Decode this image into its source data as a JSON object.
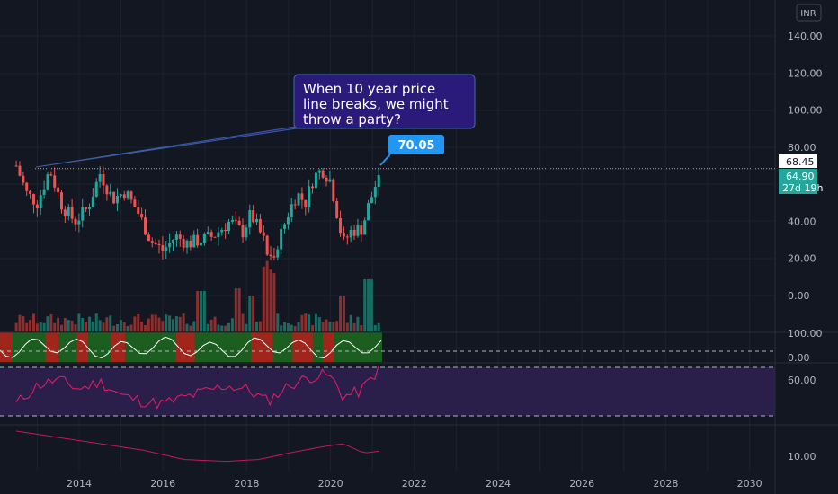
{
  "currency_button": "INR",
  "colors": {
    "background": "#131722",
    "up": "#26a69a",
    "down": "#ef5350",
    "grid": "#1e222d",
    "text": "#b2b5be",
    "callout_bg": "#2a1b7a",
    "price_bubble": "#2196f3",
    "rsi_line": "#e91e63",
    "lower_line": "#c2185b",
    "osc_line": "#ffffff"
  },
  "chart_data": {
    "type": "candlestick",
    "x_axis_years": [
      "2014",
      "2016",
      "2018",
      "2020",
      "2022",
      "2024",
      "2026",
      "2028",
      "2030"
    ],
    "price_axis_ticks": [
      "140.00",
      "120.00",
      "100.00",
      "80.00",
      "40.00",
      "20.00",
      "0.00"
    ],
    "annotation": "When 10 year price line breaks, we might throw a party?",
    "annotation_lines": [
      "When 10 year price",
      "line breaks, we might",
      "throw a party?"
    ],
    "price_bubble": "70.05",
    "resistance_label": "68.45",
    "last_price_label": "64.90",
    "countdown_label": "27d 19h",
    "oscillator_ticks": [
      "100.00",
      "0.00"
    ],
    "rsi_ticks": [
      "60.00"
    ],
    "lower_ticks": [
      "10.00"
    ],
    "close_series": [
      {
        "t": 2012.5,
        "v": 70
      },
      {
        "t": 2012.75,
        "v": 55
      },
      {
        "t": 2013.0,
        "v": 50
      },
      {
        "t": 2013.3,
        "v": 68
      },
      {
        "t": 2013.6,
        "v": 48
      },
      {
        "t": 2013.9,
        "v": 40
      },
      {
        "t": 2014.2,
        "v": 47
      },
      {
        "t": 2014.5,
        "v": 66
      },
      {
        "t": 2014.8,
        "v": 52
      },
      {
        "t": 2015.1,
        "v": 56
      },
      {
        "t": 2015.4,
        "v": 45
      },
      {
        "t": 2015.7,
        "v": 30
      },
      {
        "t": 2016.0,
        "v": 24
      },
      {
        "t": 2016.3,
        "v": 32
      },
      {
        "t": 2016.6,
        "v": 28
      },
      {
        "t": 2016.9,
        "v": 30
      },
      {
        "t": 2017.2,
        "v": 32
      },
      {
        "t": 2017.6,
        "v": 40
      },
      {
        "t": 2017.9,
        "v": 34
      },
      {
        "t": 2018.1,
        "v": 44
      },
      {
        "t": 2018.4,
        "v": 30
      },
      {
        "t": 2018.55,
        "v": 18
      },
      {
        "t": 2018.8,
        "v": 32
      },
      {
        "t": 2019.0,
        "v": 45
      },
      {
        "t": 2019.2,
        "v": 55
      },
      {
        "t": 2019.4,
        "v": 50
      },
      {
        "t": 2019.6,
        "v": 64
      },
      {
        "t": 2019.8,
        "v": 68
      },
      {
        "t": 2020.0,
        "v": 62
      },
      {
        "t": 2020.15,
        "v": 45
      },
      {
        "t": 2020.3,
        "v": 28
      },
      {
        "t": 2020.5,
        "v": 35
      },
      {
        "t": 2020.75,
        "v": 36
      },
      {
        "t": 2020.9,
        "v": 48
      },
      {
        "t": 2021.05,
        "v": 58
      },
      {
        "t": 2021.15,
        "v": 64.9
      }
    ],
    "resistance_line": {
      "from": {
        "t": 2012.95,
        "v": 68.45
      },
      "to": {
        "t": 2021.15,
        "v": 68.45
      }
    },
    "rsi_series": [
      {
        "t": 2012.5,
        "v": 40
      },
      {
        "t": 2013.0,
        "v": 55
      },
      {
        "t": 2013.5,
        "v": 60
      },
      {
        "t": 2014.0,
        "v": 52
      },
      {
        "t": 2014.5,
        "v": 58
      },
      {
        "t": 2015.0,
        "v": 47
      },
      {
        "t": 2015.5,
        "v": 42
      },
      {
        "t": 2016.0,
        "v": 40
      },
      {
        "t": 2016.5,
        "v": 45
      },
      {
        "t": 2017.0,
        "v": 50
      },
      {
        "t": 2017.5,
        "v": 55
      },
      {
        "t": 2018.0,
        "v": 52
      },
      {
        "t": 2018.5,
        "v": 42
      },
      {
        "t": 2019.0,
        "v": 55
      },
      {
        "t": 2019.5,
        "v": 62
      },
      {
        "t": 2019.9,
        "v": 64
      },
      {
        "t": 2020.1,
        "v": 58
      },
      {
        "t": 2020.3,
        "v": 46
      },
      {
        "t": 2020.7,
        "v": 50
      },
      {
        "t": 2021.15,
        "v": 68
      }
    ],
    "lower_series": [
      {
        "t": 2012.5,
        "v": 14
      },
      {
        "t": 2013.5,
        "v": 13
      },
      {
        "t": 2014.5,
        "v": 12
      },
      {
        "t": 2015.5,
        "v": 11
      },
      {
        "t": 2016.5,
        "v": 9.5
      },
      {
        "t": 2017.5,
        "v": 9.2
      },
      {
        "t": 2018.3,
        "v": 9.5
      },
      {
        "t": 2019.0,
        "v": 10.5
      },
      {
        "t": 2019.8,
        "v": 11.5
      },
      {
        "t": 2020.3,
        "v": 12
      },
      {
        "t": 2020.8,
        "v": 10.5
      },
      {
        "t": 2021.15,
        "v": 10.8
      }
    ]
  }
}
